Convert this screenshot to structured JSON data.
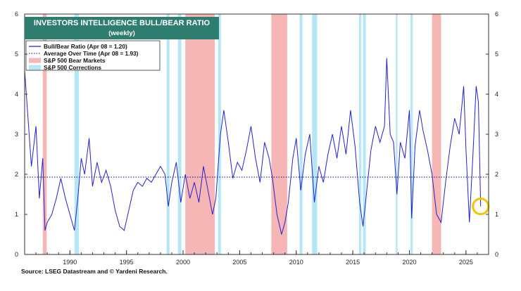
{
  "chart_data": {
    "type": "line",
    "title": "INVESTORS INTELLIGENCE BULL/BEAR RATIO",
    "subtitle": "(weekly)",
    "title_box_color": "#2e7d6e",
    "ylim": [
      0,
      6
    ],
    "xlim": [
      1986,
      2027
    ],
    "y_ticks": [
      0,
      1,
      2,
      3,
      4,
      5,
      6
    ],
    "x_ticks": [
      1990,
      1995,
      2000,
      2005,
      2010,
      2015,
      2020,
      2025
    ],
    "legend": [
      {
        "label": "Bull/Bear Ratio (Apr 08 = 1.20)",
        "kind": "line",
        "color": "#2222cc"
      },
      {
        "label": "Average Over Time (Apr 08 = 1.93)",
        "kind": "dotted",
        "color": "#000088"
      },
      {
        "label": "S&P 500 Bear Markets",
        "kind": "swatch",
        "color": "#f7b6b6"
      },
      {
        "label": "S&P 500 Corrections",
        "kind": "swatch",
        "color": "#b5e6f5"
      }
    ],
    "average": 1.93,
    "bear_markets": [
      [
        1987.6,
        1987.95
      ],
      [
        2000.2,
        2002.8
      ],
      [
        2007.8,
        2009.2
      ],
      [
        2022.0,
        2022.8
      ]
    ],
    "corrections": [
      [
        1990.4,
        1990.8
      ],
      [
        1998.55,
        1998.8
      ],
      [
        1999.55,
        1999.85
      ],
      [
        2003.1,
        2003.35
      ],
      [
        2010.3,
        2010.55
      ],
      [
        2011.4,
        2011.85
      ],
      [
        2015.55,
        2015.75
      ],
      [
        2015.9,
        2016.15
      ],
      [
        2018.8,
        2018.95
      ],
      [
        2020.1,
        2020.3
      ]
    ],
    "series": [
      {
        "name": "Bull/Bear Ratio",
        "color": "#2222cc",
        "x": [
          1986.0,
          1986.3,
          1986.6,
          1987.0,
          1987.3,
          1987.6,
          1987.8,
          1988.0,
          1988.4,
          1988.8,
          1989.2,
          1989.6,
          1990.0,
          1990.4,
          1990.7,
          1991.0,
          1991.3,
          1991.7,
          1992.0,
          1992.4,
          1992.8,
          1993.2,
          1993.6,
          1994.0,
          1994.4,
          1994.8,
          1995.2,
          1995.6,
          1996.0,
          1996.4,
          1996.8,
          1997.2,
          1997.6,
          1998.0,
          1998.4,
          1998.7,
          1999.0,
          1999.4,
          1999.8,
          2000.2,
          2000.6,
          2001.0,
          2001.4,
          2001.8,
          2002.2,
          2002.6,
          2002.9,
          2003.3,
          2003.6,
          2004.0,
          2004.4,
          2004.8,
          2005.2,
          2005.6,
          2006.0,
          2006.4,
          2006.8,
          2007.2,
          2007.6,
          2007.9,
          2008.3,
          2008.7,
          2009.0,
          2009.3,
          2009.7,
          2010.0,
          2010.4,
          2010.8,
          2011.2,
          2011.6,
          2012.0,
          2012.4,
          2012.8,
          2013.2,
          2013.6,
          2014.0,
          2014.4,
          2014.8,
          2015.2,
          2015.6,
          2015.9,
          2016.2,
          2016.6,
          2017.0,
          2017.4,
          2017.8,
          2018.0,
          2018.3,
          2018.6,
          2018.9,
          2019.2,
          2019.6,
          2020.0,
          2020.2,
          2020.5,
          2020.9,
          2021.2,
          2021.6,
          2022.0,
          2022.4,
          2022.8,
          2023.2,
          2023.6,
          2024.0,
          2024.4,
          2024.8,
          2025.0,
          2025.3,
          2025.6,
          2025.9,
          2026.1,
          2026.3
        ],
        "y": [
          4.6,
          3.4,
          2.2,
          3.2,
          1.4,
          2.4,
          0.6,
          0.8,
          1.0,
          1.4,
          1.9,
          1.4,
          1.0,
          0.6,
          1.4,
          2.4,
          2.0,
          2.9,
          1.7,
          2.3,
          1.8,
          2.1,
          1.7,
          1.1,
          0.7,
          0.6,
          1.1,
          1.6,
          1.8,
          1.7,
          1.9,
          1.8,
          2.0,
          2.2,
          2.0,
          1.2,
          1.8,
          2.3,
          1.3,
          2.0,
          1.4,
          1.8,
          1.3,
          2.2,
          1.6,
          1.0,
          1.4,
          3.0,
          3.6,
          2.8,
          1.9,
          2.3,
          2.1,
          2.6,
          3.2,
          2.4,
          1.8,
          2.8,
          2.4,
          1.9,
          1.0,
          0.5,
          0.8,
          1.3,
          2.4,
          2.9,
          1.6,
          2.5,
          3.0,
          1.3,
          2.2,
          1.8,
          2.5,
          3.0,
          2.4,
          3.2,
          2.5,
          3.6,
          2.7,
          1.3,
          0.7,
          1.5,
          2.6,
          3.2,
          2.8,
          3.2,
          4.9,
          3.0,
          2.8,
          1.5,
          2.8,
          2.4,
          3.6,
          0.9,
          2.7,
          3.6,
          3.1,
          2.6,
          2.0,
          1.0,
          0.8,
          1.8,
          2.7,
          3.4,
          3.0,
          4.2,
          2.6,
          0.8,
          2.4,
          4.2,
          3.8,
          1.2
        ]
      }
    ],
    "highlight": {
      "x": 2026.3,
      "y": 1.2,
      "color": "#f2c500"
    },
    "source": "Source: LSEG Datastream and © Yardeni Research."
  }
}
